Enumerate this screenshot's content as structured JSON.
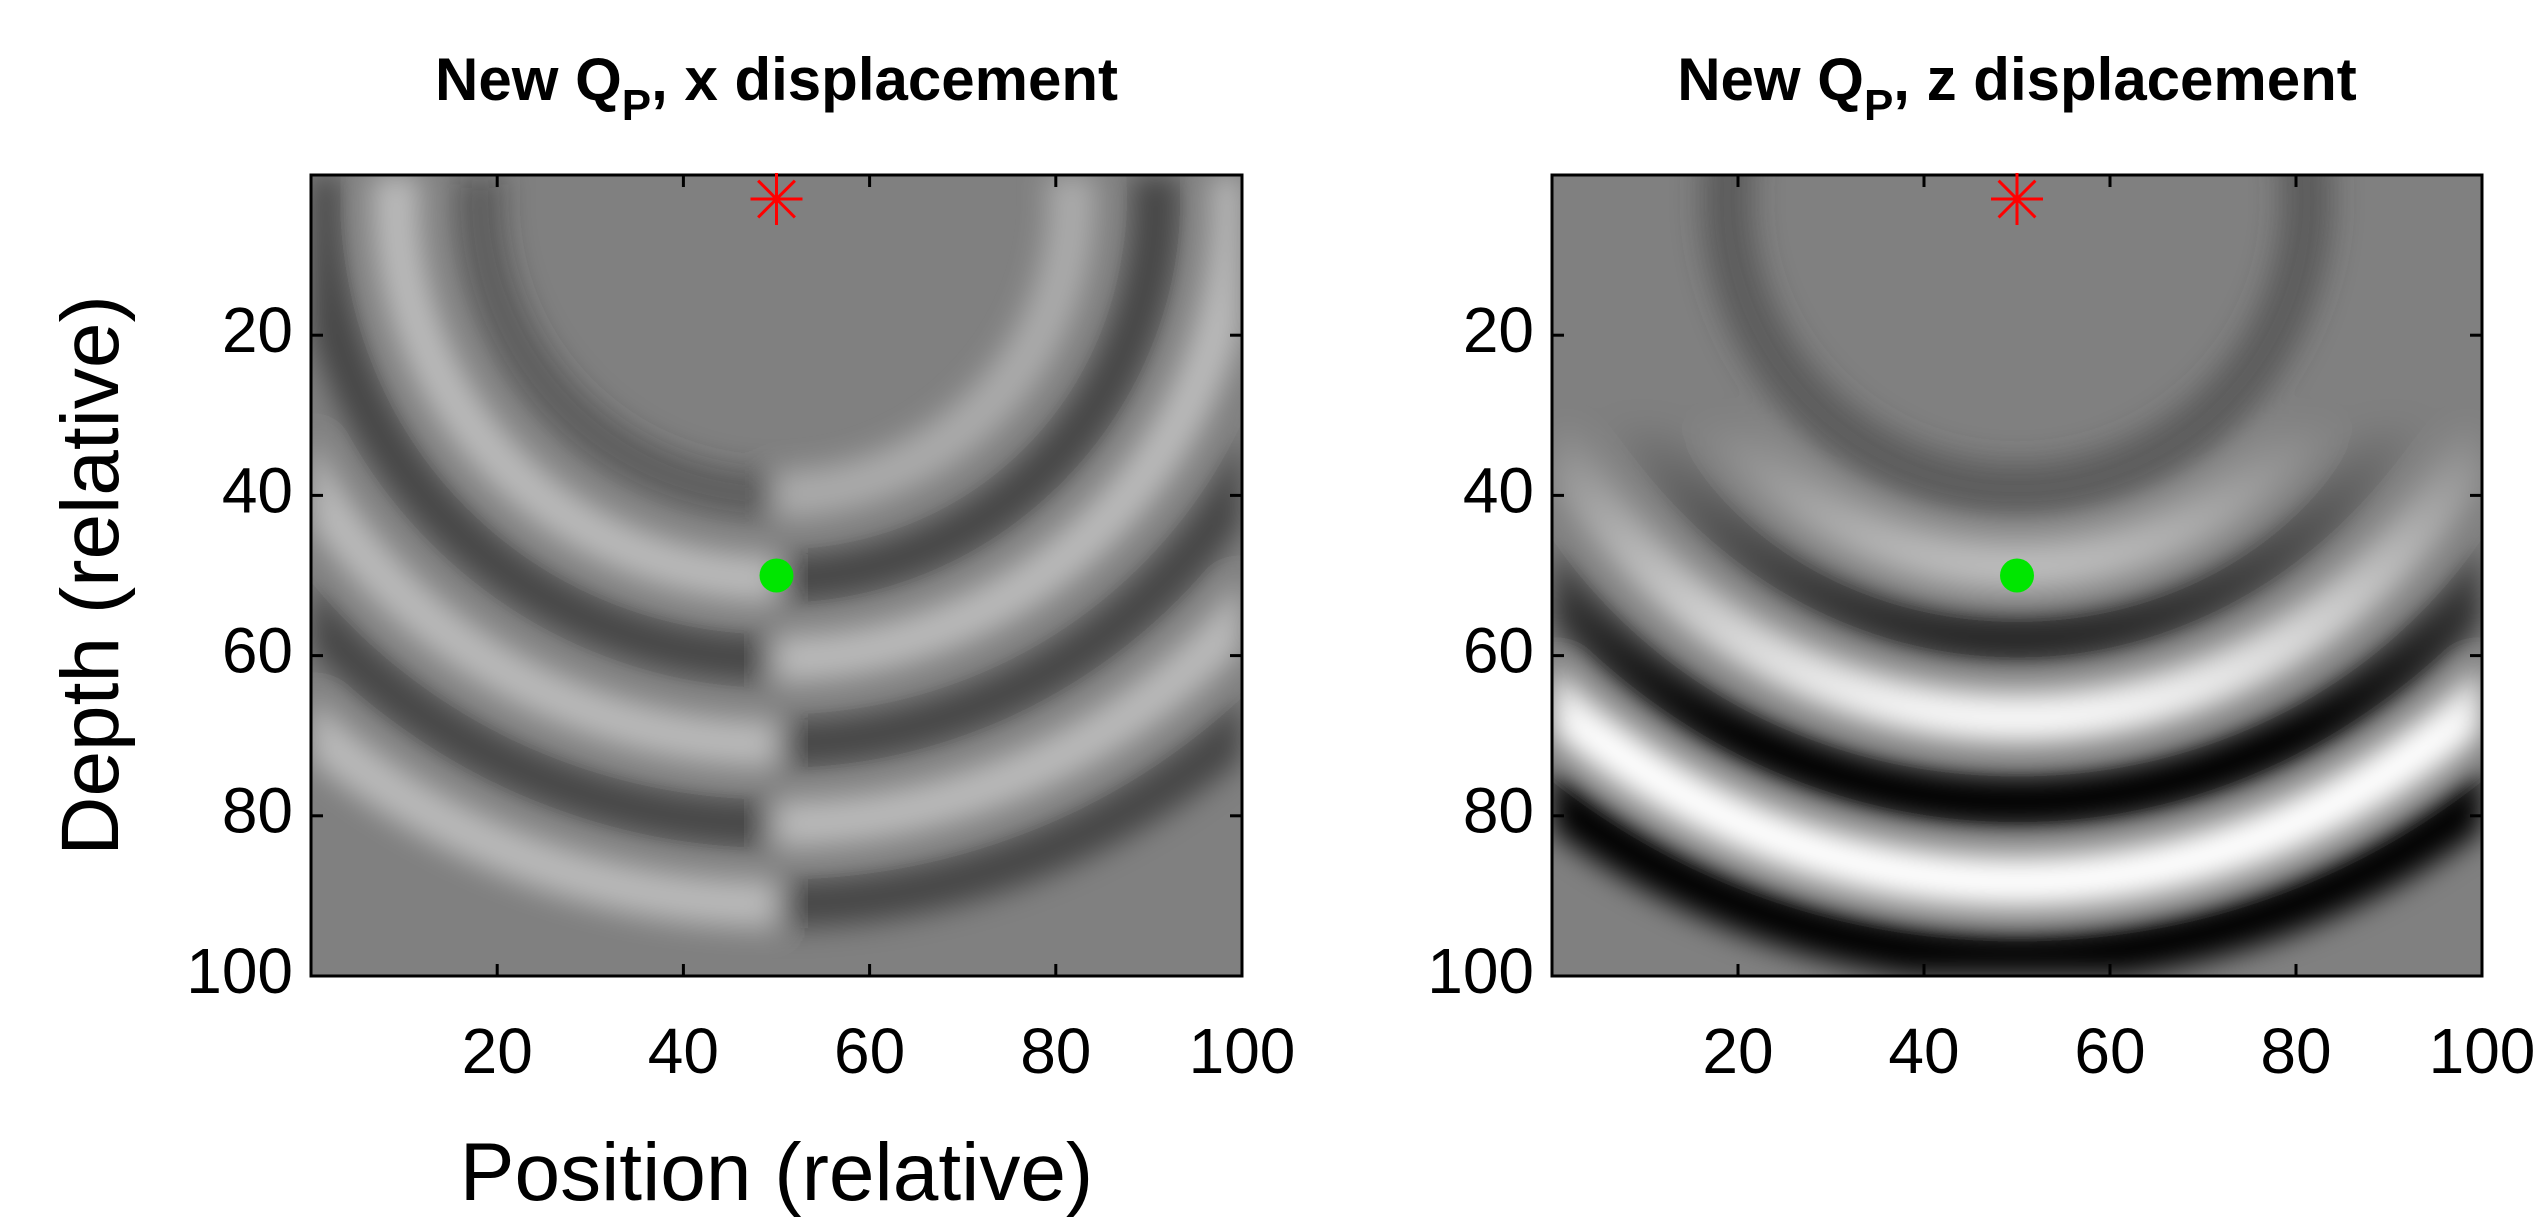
{
  "chart_data": [
    {
      "type": "scatter",
      "title_parts": [
        "New Q",
        "P",
        ", x displacement"
      ],
      "xlabel": "Position (relative)",
      "ylabel": "Depth (relative)",
      "xlim": [
        0,
        100
      ],
      "ylim": [
        0,
        100
      ],
      "y_reversed": true,
      "xticks": [
        20,
        40,
        60,
        80,
        100
      ],
      "yticks": [
        20,
        40,
        60,
        80,
        100
      ],
      "series": [
        {
          "marker": "star",
          "color": "#ff0000",
          "x": [
            50
          ],
          "y": [
            3
          ]
        },
        {
          "marker": "dot",
          "color": "#00e600",
          "x": [
            50
          ],
          "y": [
            50
          ]
        }
      ]
    },
    {
      "type": "scatter",
      "title_parts": [
        "New Q",
        "P",
        ", z displacement"
      ],
      "xlim": [
        0,
        100
      ],
      "ylim": [
        0,
        100
      ],
      "y_reversed": true,
      "xticks": [
        20,
        40,
        60,
        80,
        100
      ],
      "yticks": [
        20,
        40,
        60,
        80,
        100
      ],
      "series": [
        {
          "marker": "star",
          "color": "#ff0000",
          "x": [
            50
          ],
          "y": [
            3
          ]
        },
        {
          "marker": "dot",
          "color": "#00e600",
          "x": [
            50
          ],
          "y": [
            50
          ]
        }
      ]
    }
  ]
}
